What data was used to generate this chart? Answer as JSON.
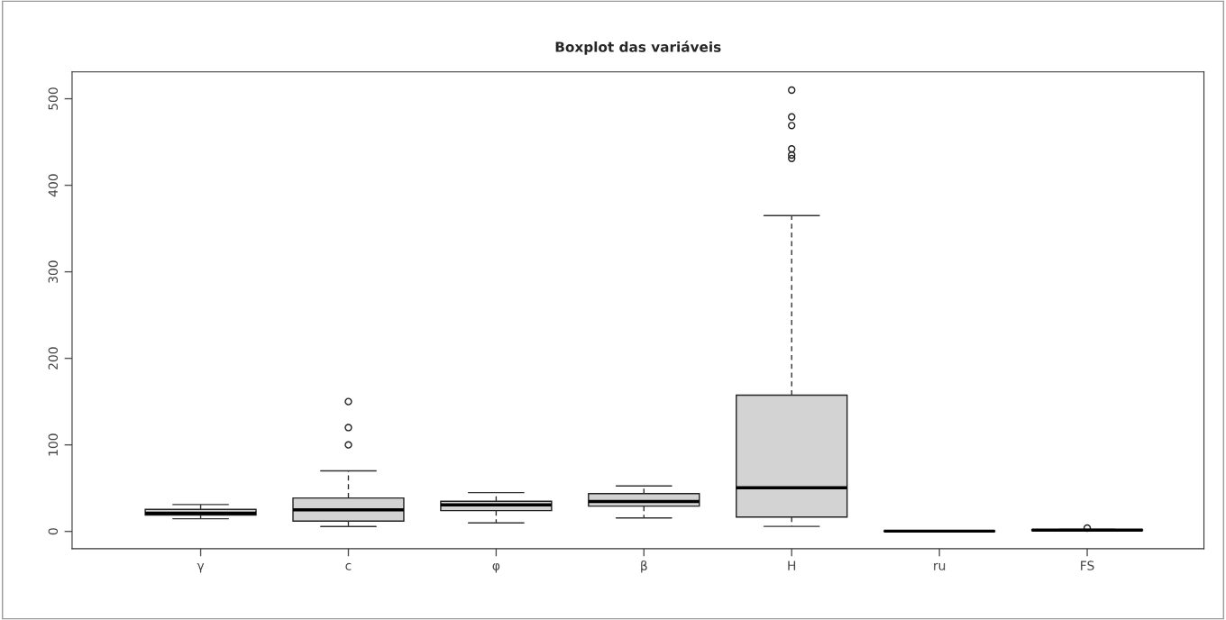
{
  "chart_data": {
    "type": "box",
    "title": "Boxplot das variáveis",
    "categories": [
      "γ",
      "c",
      "φ",
      "β",
      "H",
      "ru",
      "FS"
    ],
    "color": "#d3d3d3",
    "boxes": [
      {
        "low": 14.6,
        "q1": 18.8,
        "median": 20.9,
        "q3": 25.4,
        "high": 31
      },
      {
        "low": 5.6,
        "q1": 11.9,
        "median": 25,
        "q3": 38.6,
        "high": 70,
        "outliers": [
          100,
          120,
          150
        ]
      },
      {
        "low": 9.8,
        "q1": 24,
        "median": 30.6,
        "q3": 34.8,
        "high": 44.8
      },
      {
        "low": 15.5,
        "q1": 29.2,
        "median": 34.5,
        "q3": 43.6,
        "high": 52.5
      },
      {
        "low": 5.8,
        "q1": 16.6,
        "median": 50.4,
        "q3": 157.5,
        "high": 365,
        "outliers": [
          431,
          435,
          442,
          469,
          479,
          510
        ]
      },
      {
        "low": 0,
        "q1": 0.2,
        "median": 0.3,
        "q3": 0.4,
        "high": 0.6
      },
      {
        "low": 0.8,
        "q1": 1.2,
        "median": 1.5,
        "q3": 1.8,
        "high": 2.4,
        "outliers": [
          3.8
        ]
      }
    ],
    "ylim": [
      -20,
      531
    ],
    "yticks": [
      0,
      100,
      200,
      300,
      400,
      500
    ],
    "grid": false
  }
}
